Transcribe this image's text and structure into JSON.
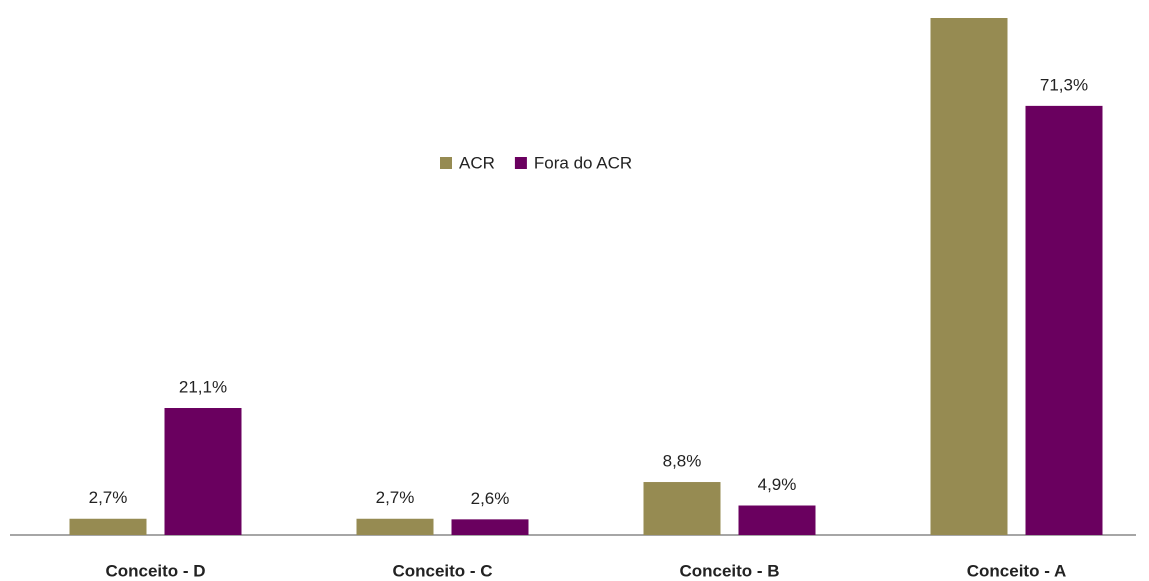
{
  "chart_data": {
    "type": "bar",
    "categories": [
      "Conceito - D",
      "Conceito - C",
      "Conceito - B",
      "Conceito - A"
    ],
    "series": [
      {
        "name": "ACR",
        "color": "#968b52",
        "values": [
          2.7,
          2.7,
          8.8,
          85.9
        ],
        "value_labels": [
          "2,7%",
          "2,7%",
          "8,8%",
          null
        ]
      },
      {
        "name": "Fora do ACR",
        "color": "#6a005f",
        "values": [
          21.1,
          2.6,
          4.9,
          71.3
        ],
        "value_labels": [
          "21,1%",
          "2,6%",
          "4,9%",
          "71,3%"
        ]
      }
    ],
    "legend": "top-center"
  }
}
